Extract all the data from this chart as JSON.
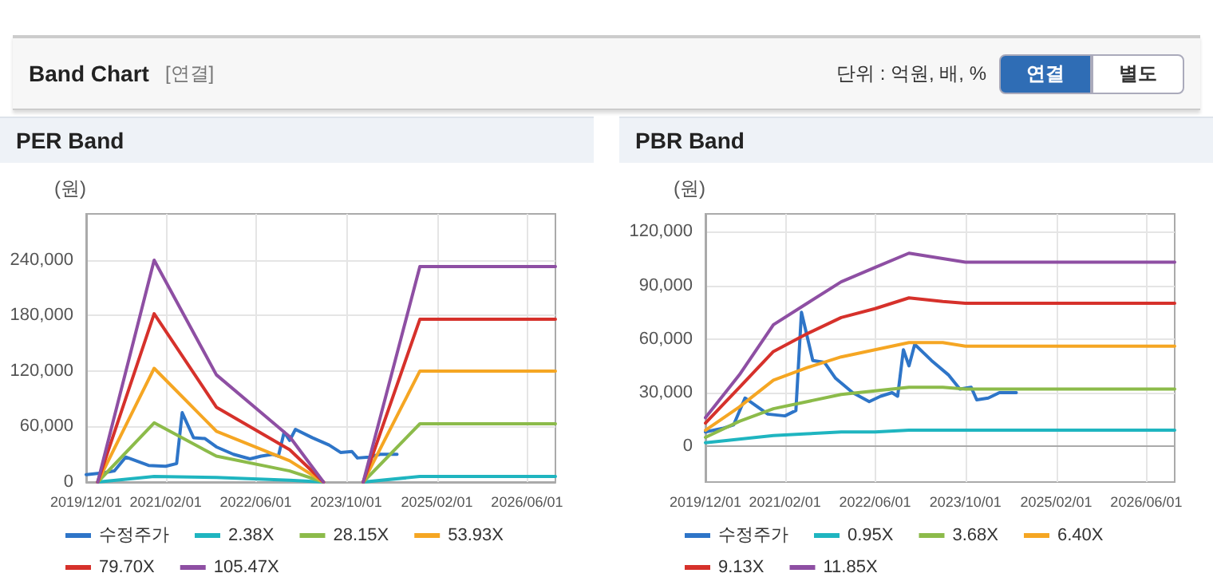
{
  "chart_data": [
    {
      "type": "other",
      "title": "Band Chart",
      "annotations": [
        "[연결]",
        "단위 : 억원, 배, %",
        "연결",
        "별도"
      ]
    },
    {
      "type": "line",
      "title": "PER Band",
      "ylabel": "(원)",
      "xlim": [
        "2019-12-01",
        "2026-11-01"
      ],
      "xticks": [
        {
          "value": "2019-12-01",
          "label": "2019/12/01"
        },
        {
          "value": "2021-02-01",
          "label": "2021/02/01"
        },
        {
          "value": "2022-06-01",
          "label": "2022/06/01"
        },
        {
          "value": "2023-10-01",
          "label": "2023/10/01"
        },
        {
          "value": "2025-02-01",
          "label": "2025/02/01"
        },
        {
          "value": "2026-06-01",
          "label": "2026/06/01"
        }
      ],
      "ylim": [
        0,
        290000
      ],
      "yticks": [
        {
          "value": 0,
          "label": "0"
        },
        {
          "value": 60000,
          "label": "60,000"
        },
        {
          "value": 120000,
          "label": "120,000"
        },
        {
          "value": 180000,
          "label": "180,000"
        },
        {
          "value": 240000,
          "label": "240,000"
        }
      ],
      "grid": true,
      "legend": "bottom",
      "marker": "none",
      "series": [
        {
          "name": "수정주가",
          "color": "#2e75c8",
          "x": [
            "2019-12-01",
            "2020-03-01",
            "2020-05-01",
            "2020-07-01",
            "2020-11-01",
            "2021-02-01",
            "2021-04-01",
            "2021-05-01",
            "2021-07-01",
            "2021-09-01",
            "2021-11-01",
            "2022-02-01",
            "2022-05-01",
            "2022-07-01",
            "2022-09-01",
            "2022-10-01",
            "2022-11-01",
            "2022-12-01",
            "2023-01-01",
            "2023-04-01",
            "2023-07-01",
            "2023-09-01",
            "2023-11-01",
            "2023-12-01",
            "2024-02-01",
            "2024-04-01",
            "2024-07-01"
          ],
          "values": [
            8000,
            10000,
            12000,
            27000,
            18000,
            17000,
            20000,
            75000,
            48000,
            47000,
            38000,
            30000,
            25000,
            28000,
            30000,
            28000,
            54000,
            45000,
            57000,
            48000,
            40000,
            32000,
            33000,
            26000,
            27000,
            30000,
            30000
          ]
        },
        {
          "name": "2.38X",
          "color": "#1fb5c0",
          "x": [
            "2020-02-01",
            "2020-12-01",
            "2021-11-01",
            "2022-12-01",
            "2023-06-01",
            "2023-09-01",
            "2024-01-01",
            "2024-11-01",
            "2026-11-01"
          ],
          "values": [
            0,
            6000,
            5000,
            2000,
            0,
            null,
            0,
            6000,
            6000
          ]
        },
        {
          "name": "28.15X",
          "color": "#8cbb4a",
          "x": [
            "2020-02-01",
            "2020-12-01",
            "2021-11-01",
            "2022-12-01",
            "2023-06-01",
            "2023-09-01",
            "2024-01-01",
            "2024-11-01",
            "2026-11-01"
          ],
          "values": [
            0,
            64000,
            28000,
            12000,
            0,
            null,
            0,
            63000,
            63000
          ]
        },
        {
          "name": "53.93X",
          "color": "#f5a623",
          "x": [
            "2020-02-01",
            "2020-12-01",
            "2021-11-01",
            "2022-12-01",
            "2023-06-01",
            "2023-09-01",
            "2024-01-01",
            "2024-11-01",
            "2026-11-01"
          ],
          "values": [
            0,
            123000,
            55000,
            23000,
            0,
            null,
            0,
            120000,
            120000
          ]
        },
        {
          "name": "79.70X",
          "color": "#d6312b",
          "x": [
            "2020-02-01",
            "2020-12-01",
            "2021-11-01",
            "2022-12-01",
            "2023-06-01",
            "2023-09-01",
            "2024-01-01",
            "2024-11-01",
            "2026-11-01"
          ],
          "values": [
            0,
            182000,
            81000,
            35000,
            0,
            null,
            0,
            176000,
            176000
          ]
        },
        {
          "name": "105.47X",
          "color": "#8e4fa3",
          "x": [
            "2020-02-01",
            "2020-12-01",
            "2021-11-01",
            "2022-12-01",
            "2023-06-01",
            "2023-09-01",
            "2024-01-01",
            "2024-11-01",
            "2026-11-01"
          ],
          "values": [
            0,
            240000,
            116000,
            49000,
            0,
            null,
            0,
            233000,
            233000
          ]
        }
      ]
    },
    {
      "type": "line",
      "title": "PBR Band",
      "ylabel": "(원)",
      "xlim": [
        "2019-12-01",
        "2026-11-01"
      ],
      "xticks": [
        {
          "value": "2019-12-01",
          "label": "2019/12/01"
        },
        {
          "value": "2021-02-01",
          "label": "2021/02/01"
        },
        {
          "value": "2022-06-01",
          "label": "2022/06/01"
        },
        {
          "value": "2023-10-01",
          "label": "2023/10/01"
        },
        {
          "value": "2025-02-01",
          "label": "2025/02/01"
        },
        {
          "value": "2026-06-01",
          "label": "2026/06/01"
        }
      ],
      "ylim": [
        -20000,
        130000
      ],
      "yticks": [
        {
          "value": 0,
          "label": "0"
        },
        {
          "value": 30000,
          "label": "30,000"
        },
        {
          "value": 60000,
          "label": "60,000"
        },
        {
          "value": 90000,
          "label": "90,000"
        },
        {
          "value": 120000,
          "label": "120,000"
        }
      ],
      "grid": true,
      "legend": "bottom",
      "marker": "none",
      "series": [
        {
          "name": "수정주가",
          "color": "#2e75c8",
          "x": [
            "2019-12-01",
            "2020-03-01",
            "2020-05-01",
            "2020-07-01",
            "2020-11-01",
            "2021-02-01",
            "2021-04-01",
            "2021-05-01",
            "2021-07-01",
            "2021-09-01",
            "2021-11-01",
            "2022-02-01",
            "2022-05-01",
            "2022-07-01",
            "2022-09-01",
            "2022-10-01",
            "2022-11-01",
            "2022-12-01",
            "2023-01-01",
            "2023-04-01",
            "2023-07-01",
            "2023-09-01",
            "2023-11-01",
            "2023-12-01",
            "2024-02-01",
            "2024-04-01",
            "2024-07-01"
          ],
          "values": [
            8000,
            10000,
            12000,
            27000,
            18000,
            17000,
            20000,
            75000,
            48000,
            47000,
            38000,
            30000,
            25000,
            28000,
            30000,
            28000,
            54000,
            45000,
            57000,
            48000,
            40000,
            32000,
            33000,
            26000,
            27000,
            30000,
            30000
          ]
        },
        {
          "name": "0.95X",
          "color": "#1fb5c0",
          "x": [
            "2019-12-01",
            "2020-06-01",
            "2020-12-01",
            "2021-06-01",
            "2021-12-01",
            "2022-06-01",
            "2022-12-01",
            "2023-06-01",
            "2023-10-01",
            "2026-11-01"
          ],
          "values": [
            2000,
            4000,
            6000,
            7000,
            8000,
            8000,
            9000,
            9000,
            9000,
            9000
          ]
        },
        {
          "name": "3.68X",
          "color": "#8cbb4a",
          "x": [
            "2019-12-01",
            "2020-06-01",
            "2020-12-01",
            "2021-06-01",
            "2021-12-01",
            "2022-06-01",
            "2022-12-01",
            "2023-06-01",
            "2023-10-01",
            "2026-11-01"
          ],
          "values": [
            5000,
            14000,
            21000,
            25000,
            29000,
            31000,
            33000,
            33000,
            32000,
            32000
          ]
        },
        {
          "name": "6.40X",
          "color": "#f5a623",
          "x": [
            "2019-12-01",
            "2020-06-01",
            "2020-12-01",
            "2021-06-01",
            "2021-12-01",
            "2022-06-01",
            "2022-12-01",
            "2023-06-01",
            "2023-10-01",
            "2026-11-01"
          ],
          "values": [
            9000,
            22000,
            37000,
            44000,
            50000,
            54000,
            58000,
            58000,
            56000,
            56000
          ]
        },
        {
          "name": "9.13X",
          "color": "#d6312b",
          "x": [
            "2019-12-01",
            "2020-06-01",
            "2020-12-01",
            "2021-06-01",
            "2021-12-01",
            "2022-06-01",
            "2022-12-01",
            "2023-06-01",
            "2023-10-01",
            "2026-11-01"
          ],
          "values": [
            13000,
            33000,
            53000,
            63000,
            72000,
            77000,
            83000,
            81000,
            80000,
            80000
          ]
        },
        {
          "name": "11.85X",
          "color": "#8e4fa3",
          "x": [
            "2019-12-01",
            "2020-06-01",
            "2020-12-01",
            "2021-06-01",
            "2021-12-01",
            "2022-06-01",
            "2022-12-01",
            "2023-06-01",
            "2023-10-01",
            "2026-11-01"
          ],
          "values": [
            16000,
            40000,
            68000,
            80000,
            92000,
            100000,
            108000,
            105000,
            103000,
            103000
          ]
        }
      ]
    }
  ]
}
